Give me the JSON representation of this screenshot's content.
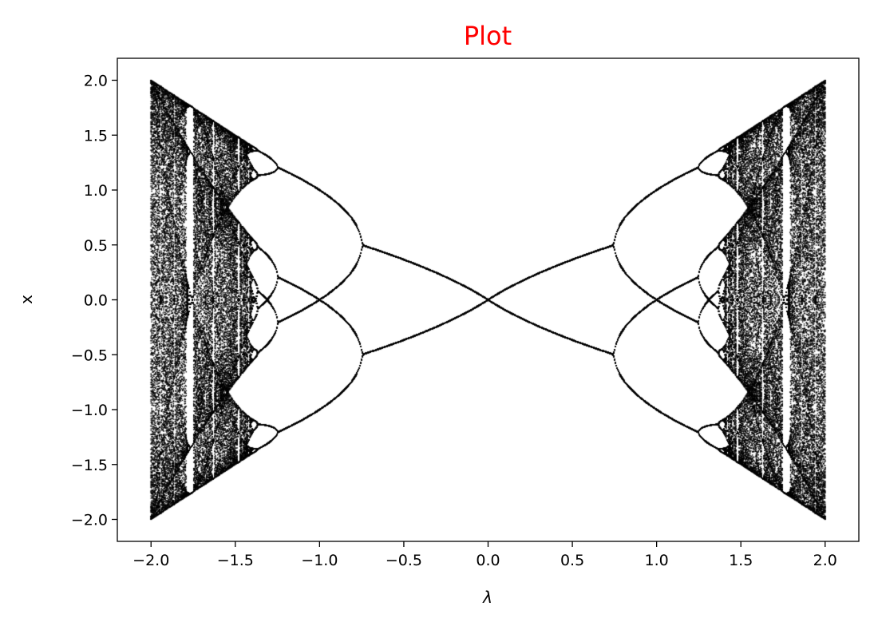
{
  "chart_data": {
    "type": "scatter",
    "title": "Plot",
    "title_color": "#ff0000",
    "xlabel": "λ",
    "ylabel": "x",
    "xlim": [
      -2.2,
      2.2
    ],
    "ylim": [
      -2.2,
      2.2
    ],
    "x_ticks": [
      -2.0,
      -1.5,
      -1.0,
      -0.5,
      0.0,
      0.5,
      1.0,
      1.5,
      2.0
    ],
    "y_ticks": [
      -2.0,
      -1.5,
      -1.0,
      -0.5,
      0.0,
      0.5,
      1.0,
      1.5,
      2.0
    ],
    "x_tick_labels": [
      "−2.0",
      "−1.5",
      "−1.0",
      "−0.5",
      "0.0",
      "0.5",
      "1.0",
      "1.5",
      "2.0"
    ],
    "y_tick_labels": [
      "−2.0",
      "−1.5",
      "−1.0",
      "−0.5",
      "0.0",
      "0.5",
      "1.0",
      "1.5",
      "2.0"
    ],
    "grid": false,
    "marker_color": "#000000",
    "description_of_data": "bifurcation diagram of map x -> λ - x^2 mirrored for negative λ; fixed point 0 for |λ| <= 1/3",
    "series": [
      {
        "x_range": [
          -2.0,
          2.0
        ],
        "y_range": [
          -2.0,
          2.0
        ]
      }
    ]
  }
}
